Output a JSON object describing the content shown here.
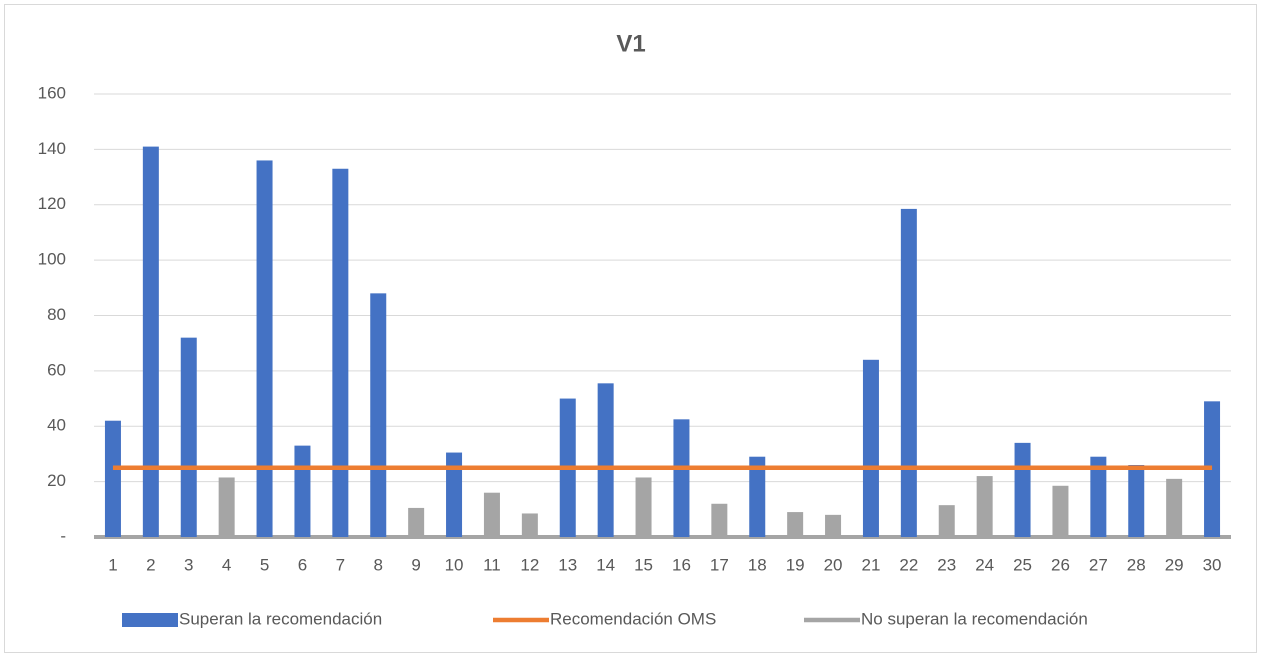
{
  "chart_data": {
    "type": "bar",
    "title": "V1",
    "categories": [
      "1",
      "2",
      "3",
      "4",
      "5",
      "6",
      "7",
      "8",
      "9",
      "10",
      "11",
      "12",
      "13",
      "14",
      "15",
      "16",
      "17",
      "18",
      "19",
      "20",
      "21",
      "22",
      "23",
      "24",
      "25",
      "26",
      "27",
      "28",
      "29",
      "30"
    ],
    "series": [
      {
        "name": "Superan la recomendación",
        "color": "#4472c4",
        "type": "bar",
        "values": [
          42,
          141,
          72,
          null,
          136,
          33,
          133,
          88,
          null,
          30.5,
          null,
          null,
          50,
          55.5,
          null,
          42.5,
          null,
          29,
          null,
          null,
          64,
          118.5,
          null,
          null,
          34,
          null,
          29,
          26,
          null,
          49
        ]
      },
      {
        "name": "Recomendación OMS",
        "color": "#ed7d31",
        "type": "line",
        "values": [
          25,
          25,
          25,
          25,
          25,
          25,
          25,
          25,
          25,
          25,
          25,
          25,
          25,
          25,
          25,
          25,
          25,
          25,
          25,
          25,
          25,
          25,
          25,
          25,
          25,
          25,
          25,
          25,
          25,
          25
        ]
      },
      {
        "name": "No superan la recomendación",
        "color": "#a5a5a5",
        "type": "bar",
        "values": [
          null,
          null,
          null,
          21.5,
          null,
          null,
          null,
          null,
          10.5,
          null,
          16,
          8.5,
          null,
          null,
          21.5,
          null,
          12,
          null,
          9,
          8,
          null,
          null,
          11.5,
          22,
          null,
          18.5,
          null,
          null,
          21,
          null
        ]
      }
    ],
    "ylim": [
      0,
      160
    ],
    "yticks": [
      {
        "value": 0,
        "label": "-"
      },
      20,
      40,
      60,
      80,
      100,
      120,
      140,
      160
    ],
    "grid": true,
    "legend": "bottom"
  }
}
